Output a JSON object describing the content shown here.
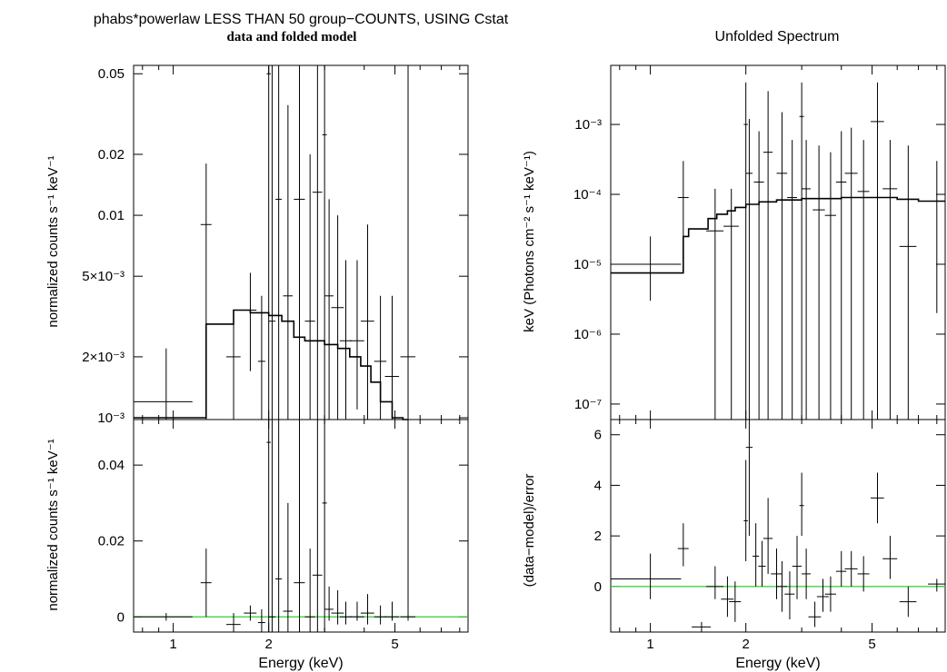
{
  "header": {
    "left_title": "phabs*powerlaw LESS THAN 50 group−COUNTS, USING Cstat",
    "left_subtitle": "data and folded model",
    "right_title": "Unfolded Spectrum"
  },
  "colors": {
    "data": "#000000",
    "model": "#000000",
    "zero_line": "#33cc33"
  },
  "chart_data": [
    {
      "type": "line",
      "panel": "top-left",
      "title": "data and folded model",
      "ylabel": "normalized counts s⁻¹ keV⁻¹",
      "xscale": "log",
      "yscale": "log",
      "xlim": [
        0.75,
        8.5
      ],
      "ylim": [
        0.00098,
        0.055
      ],
      "yticks": [
        {
          "v": 0.05,
          "label": "0.05"
        },
        {
          "v": 0.02,
          "label": "0.02"
        },
        {
          "v": 0.01,
          "label": "0.01"
        },
        {
          "v": 0.005,
          "label": "5×10⁻³"
        },
        {
          "v": 0.002,
          "label": "2×10⁻³"
        },
        {
          "v": 0.001,
          "label": "10⁻³"
        }
      ],
      "model": {
        "x": [
          0.75,
          1.27,
          1.27,
          1.55,
          1.55,
          1.75,
          1.75,
          2.0,
          2.0,
          2.2,
          2.2,
          2.4,
          2.4,
          2.6,
          2.6,
          3.0,
          3.0,
          3.3,
          3.3,
          3.6,
          3.6,
          3.9,
          3.9,
          4.2,
          4.2,
          4.5,
          4.5,
          4.9,
          4.9,
          5.3,
          5.3,
          5.5
        ],
        "y": [
          0.001,
          0.001,
          0.0029,
          0.0029,
          0.0034,
          0.0034,
          0.0033,
          0.0033,
          0.0032,
          0.0032,
          0.003,
          0.003,
          0.0025,
          0.0025,
          0.0024,
          0.0024,
          0.0023,
          0.0023,
          0.0022,
          0.0022,
          0.002,
          0.002,
          0.0018,
          0.0018,
          0.0015,
          0.0015,
          0.0012,
          0.0012,
          0.001,
          0.001,
          0.00098,
          0.00098
        ]
      },
      "series": [
        {
          "x": [
            0.95,
            1.27,
            1.55,
            1.75,
            1.9,
            2.0,
            2.05,
            2.15,
            2.3,
            2.5,
            2.7,
            2.85,
            3.0,
            3.1,
            3.3,
            3.5,
            3.8,
            4.1,
            4.5,
            4.9,
            5.5
          ],
          "y": [
            0.0012,
            0.009,
            0.002,
            0.0034,
            0.0019,
            0.05,
            0.003,
            0.012,
            0.004,
            0.012,
            0.003,
            0.013,
            0.025,
            0.004,
            0.0035,
            0.0024,
            0.0024,
            0.003,
            0.0019,
            0.0016,
            0.002
          ],
          "ylo": [
            0.00098,
            0.00098,
            0.00098,
            0.0017,
            0.00098,
            0.00098,
            0.00098,
            0.00098,
            0.00098,
            0.00098,
            0.00098,
            0.00098,
            0.00098,
            0.00098,
            0.00098,
            0.00098,
            0.0011,
            0.00098,
            0.00098,
            0.00098,
            0.00098
          ],
          "yhi": [
            0.0022,
            0.018,
            0.0033,
            0.0052,
            0.004,
            0.055,
            0.055,
            0.055,
            0.035,
            0.055,
            0.02,
            0.055,
            0.055,
            0.012,
            0.01,
            0.006,
            0.006,
            0.009,
            0.004,
            0.004,
            0.055
          ],
          "xerr": [
            0.2,
            0.05,
            0.08,
            0.08,
            0.05,
            0.03,
            0.05,
            0.05,
            0.08,
            0.1,
            0.1,
            0.1,
            0.05,
            0.1,
            0.15,
            0.15,
            0.2,
            0.2,
            0.2,
            0.25,
            0.3
          ]
        }
      ]
    },
    {
      "type": "scatter",
      "panel": "bottom-left",
      "title": "",
      "xlabel": "Energy (keV)",
      "ylabel": "normalized counts s⁻¹ keV⁻¹",
      "xscale": "log",
      "xlim": [
        0.75,
        8.5
      ],
      "ylim": [
        -0.004,
        0.052
      ],
      "xticks": [
        {
          "v": 1,
          "label": "1"
        },
        {
          "v": 2,
          "label": "2"
        },
        {
          "v": 5,
          "label": "5"
        }
      ],
      "yticks": [
        {
          "v": 0.04,
          "label": "0.04"
        },
        {
          "v": 0.02,
          "label": "0.02"
        },
        {
          "v": 0,
          "label": "0"
        }
      ],
      "zero_line": 0,
      "series": [
        {
          "x": [
            0.95,
            1.27,
            1.55,
            1.75,
            1.9,
            2.0,
            2.05,
            2.15,
            2.3,
            2.5,
            2.7,
            2.85,
            3.0,
            3.1,
            3.3,
            3.5,
            3.8,
            4.1,
            4.5,
            4.9,
            5.5
          ],
          "y": [
            0.0,
            0.009,
            -0.002,
            0.001,
            -0.0015,
            0.046,
            0.0,
            0.01,
            0.0015,
            0.009,
            0.0,
            0.011,
            0.03,
            0.002,
            0.001,
            0.0,
            0.0,
            0.001,
            0.0,
            0.0,
            0.0
          ],
          "ylo": [
            -0.001,
            0.0,
            -0.004,
            -0.001,
            -0.004,
            -0.004,
            -0.004,
            -0.004,
            -0.004,
            -0.004,
            -0.004,
            -0.004,
            -0.004,
            -0.001,
            -0.002,
            -0.002,
            -0.001,
            -0.002,
            -0.002,
            -0.001,
            -0.001
          ],
          "yhi": [
            0.001,
            0.018,
            0.001,
            0.003,
            0.002,
            0.052,
            0.052,
            0.052,
            0.03,
            0.052,
            0.018,
            0.052,
            0.052,
            0.008,
            0.007,
            0.004,
            0.004,
            0.006,
            0.003,
            0.004,
            0.052
          ],
          "xerr": [
            0.2,
            0.05,
            0.08,
            0.08,
            0.05,
            0.03,
            0.05,
            0.05,
            0.08,
            0.1,
            0.1,
            0.1,
            0.05,
            0.1,
            0.15,
            0.15,
            0.2,
            0.2,
            0.2,
            0.25,
            0.3
          ]
        }
      ]
    },
    {
      "type": "line",
      "panel": "top-right",
      "title": "Unfolded Spectrum",
      "ylabel": "keV (Photons cm⁻² s⁻¹ keV⁻¹)",
      "xscale": "log",
      "yscale": "log",
      "xlim": [
        0.75,
        8.5
      ],
      "ylim": [
        6e-08,
        0.007
      ],
      "yticks": [
        {
          "v": 0.001,
          "label": "10⁻³"
        },
        {
          "v": 0.0001,
          "label": "10⁻⁴"
        },
        {
          "v": 1e-05,
          "label": "10⁻⁵"
        },
        {
          "v": 1e-06,
          "label": "10⁻⁶"
        },
        {
          "v": 1e-07,
          "label": "10⁻⁷"
        }
      ],
      "model": {
        "x": [
          0.75,
          1.27,
          1.27,
          1.32,
          1.32,
          1.52,
          1.52,
          1.62,
          1.62,
          1.75,
          1.75,
          1.85,
          1.85,
          2.0,
          2.0,
          2.2,
          2.2,
          2.5,
          2.5,
          3.0,
          3.0,
          4.0,
          4.0,
          6.0,
          6.0,
          7.0,
          7.0,
          8.5
        ],
        "y": [
          7.5e-06,
          7.5e-06,
          2.5e-05,
          2.5e-05,
          3.2e-05,
          3.2e-05,
          4.5e-05,
          4.5e-05,
          5.2e-05,
          5.2e-05,
          5.8e-05,
          5.8e-05,
          6.5e-05,
          6.5e-05,
          7.2e-05,
          7.2e-05,
          7.8e-05,
          7.8e-05,
          8.3e-05,
          8.3e-05,
          8.7e-05,
          8.7e-05,
          9e-05,
          9e-05,
          8.5e-05,
          8.5e-05,
          8e-05,
          8e-05
        ]
      },
      "series": [
        {
          "x": [
            1.0,
            1.27,
            1.6,
            1.8,
            2.0,
            2.05,
            2.2,
            2.35,
            2.6,
            2.8,
            3.0,
            3.1,
            3.4,
            3.7,
            4.0,
            4.3,
            4.7,
            5.2,
            5.7,
            6.5,
            8.0
          ],
          "y": [
            1e-05,
            9e-05,
            3e-05,
            3.5e-05,
            0.001,
            0.0002,
            0.00015,
            0.0004,
            0.0002,
            9e-05,
            0.0013,
            0.00012,
            6e-05,
            5e-05,
            0.00015,
            0.0002,
            0.00011,
            0.0011,
            0.00012,
            1.8e-05,
            8e-05
          ],
          "ylo": [
            3e-06,
            1e-05,
            6e-08,
            6e-08,
            6e-08,
            6e-08,
            6e-08,
            6e-08,
            6e-08,
            6e-08,
            6e-08,
            6e-08,
            6e-08,
            6e-08,
            6e-08,
            6e-08,
            6e-08,
            6e-08,
            6e-08,
            6e-08,
            2e-06
          ],
          "yhi": [
            2.5e-05,
            0.0003,
            0.00012,
            0.00012,
            0.004,
            0.0012,
            0.0008,
            0.003,
            0.0015,
            0.0006,
            0.004,
            0.0006,
            0.0005,
            0.0004,
            0.0008,
            0.0009,
            0.0006,
            0.004,
            0.0006,
            0.0005,
            0.0003
          ],
          "xerr": [
            0.25,
            0.05,
            0.1,
            0.1,
            0.03,
            0.05,
            0.08,
            0.08,
            0.1,
            0.1,
            0.05,
            0.1,
            0.15,
            0.15,
            0.15,
            0.2,
            0.2,
            0.25,
            0.3,
            0.4,
            0.5
          ]
        }
      ]
    },
    {
      "type": "scatter",
      "panel": "bottom-right",
      "title": "",
      "xlabel": "Energy (keV)",
      "ylabel": "(data−model)/error",
      "xscale": "log",
      "xlim": [
        0.75,
        8.5
      ],
      "ylim": [
        -1.8,
        6.6
      ],
      "xticks": [
        {
          "v": 1,
          "label": "1"
        },
        {
          "v": 2,
          "label": "2"
        },
        {
          "v": 5,
          "label": "5"
        }
      ],
      "yticks": [
        {
          "v": 6,
          "label": "6"
        },
        {
          "v": 4,
          "label": "4"
        },
        {
          "v": 2,
          "label": "2"
        },
        {
          "v": 0,
          "label": "0"
        }
      ],
      "zero_line": 0,
      "series": [
        {
          "x": [
            1.0,
            1.27,
            1.45,
            1.6,
            1.75,
            1.85,
            2.0,
            2.05,
            2.15,
            2.25,
            2.35,
            2.5,
            2.6,
            2.75,
            2.9,
            3.0,
            3.1,
            3.3,
            3.5,
            3.7,
            4.0,
            4.3,
            4.7,
            5.2,
            5.7,
            6.5,
            8.0
          ],
          "y": [
            0.3,
            1.5,
            -1.6,
            0.0,
            -0.5,
            -0.6,
            2.6,
            5.5,
            1.2,
            0.8,
            1.9,
            0.5,
            0.0,
            -0.3,
            0.8,
            3.2,
            0.5,
            -1.2,
            -0.4,
            -0.3,
            0.6,
            0.7,
            0.5,
            3.5,
            1.1,
            -0.6,
            0.1
          ],
          "ylo": [
            -0.5,
            0.8,
            -1.8,
            -0.5,
            -1.2,
            -1.4,
            1.0,
            2.0,
            0.0,
            0.0,
            0.5,
            -0.5,
            -1.0,
            -1.3,
            -0.5,
            2.0,
            -0.5,
            -1.6,
            -1.0,
            -1.0,
            0.0,
            0.0,
            -0.2,
            2.5,
            0.3,
            -1.2,
            -0.2
          ],
          "yhi": [
            1.3,
            2.5,
            -1.4,
            0.8,
            0.4,
            0.2,
            5.0,
            6.6,
            2.5,
            1.8,
            3.5,
            1.5,
            1.0,
            0.6,
            2.0,
            4.5,
            1.5,
            -0.6,
            0.3,
            0.4,
            1.4,
            1.4,
            1.2,
            4.5,
            2.0,
            0.0,
            0.3
          ],
          "xerr": [
            0.25,
            0.05,
            0.1,
            0.1,
            0.08,
            0.08,
            0.03,
            0.05,
            0.05,
            0.06,
            0.08,
            0.1,
            0.1,
            0.1,
            0.1,
            0.05,
            0.1,
            0.15,
            0.15,
            0.15,
            0.15,
            0.2,
            0.2,
            0.25,
            0.3,
            0.4,
            0.5
          ]
        }
      ]
    }
  ]
}
